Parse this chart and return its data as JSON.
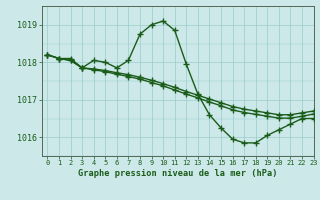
{
  "bg_color": "#cce8e8",
  "grid_color": "#99cccc",
  "line_color": "#1a5c1a",
  "title": "Graphe pression niveau de la mer (hPa)",
  "xlim": [
    -0.5,
    23
  ],
  "ylim": [
    1015.5,
    1019.5
  ],
  "yticks": [
    1016,
    1017,
    1018,
    1019
  ],
  "xticks": [
    0,
    1,
    2,
    3,
    4,
    5,
    6,
    7,
    8,
    9,
    10,
    11,
    12,
    13,
    14,
    15,
    16,
    17,
    18,
    19,
    20,
    21,
    22,
    23
  ],
  "series": [
    {
      "x": [
        0,
        1,
        2,
        3,
        4,
        5,
        6,
        7,
        8,
        9,
        10,
        11,
        12,
        13,
        14,
        15,
        16,
        17,
        18,
        19,
        20,
        21,
        22,
        23
      ],
      "y": [
        1018.2,
        1018.1,
        1018.1,
        1017.85,
        1018.05,
        1018.0,
        1017.85,
        1018.05,
        1018.75,
        1019.0,
        1019.1,
        1018.85,
        1017.95,
        1017.15,
        1016.6,
        1016.25,
        1015.95,
        1015.85,
        1015.85,
        1016.05,
        1016.2,
        1016.35,
        1016.5,
        1016.5
      ]
    },
    {
      "x": [
        0,
        1,
        2,
        3,
        4,
        5,
        6,
        7,
        8,
        9,
        10,
        11,
        12,
        13,
        14,
        15,
        16,
        17,
        18,
        19,
        20,
        21,
        22,
        23
      ],
      "y": [
        1018.2,
        1018.1,
        1018.05,
        1017.85,
        1017.82,
        1017.78,
        1017.72,
        1017.67,
        1017.6,
        1017.52,
        1017.43,
        1017.33,
        1017.22,
        1017.12,
        1017.02,
        1016.92,
        1016.82,
        1016.75,
        1016.7,
        1016.65,
        1016.6,
        1016.6,
        1016.65,
        1016.7
      ]
    },
    {
      "x": [
        0,
        1,
        2,
        3,
        4,
        5,
        6,
        7,
        8,
        9,
        10,
        11,
        12,
        13,
        14,
        15,
        16,
        17,
        18,
        19,
        20,
        21,
        22,
        23
      ],
      "y": [
        1018.2,
        1018.1,
        1018.05,
        1017.85,
        1017.8,
        1017.75,
        1017.68,
        1017.62,
        1017.55,
        1017.46,
        1017.37,
        1017.26,
        1017.15,
        1017.05,
        1016.94,
        1016.84,
        1016.73,
        1016.66,
        1016.61,
        1016.56,
        1016.51,
        1016.51,
        1016.56,
        1016.62
      ]
    }
  ],
  "marker": "+",
  "markersize": 4,
  "markeredgewidth": 1.0,
  "linewidth": 1.0
}
